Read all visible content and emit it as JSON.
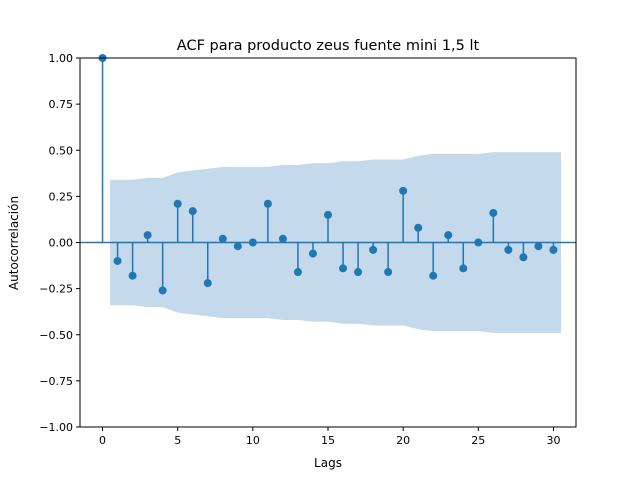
{
  "chart_data": {
    "type": "stem",
    "title": "ACF para producto zeus fuente mini 1,5 lt",
    "xlabel": "Lags",
    "ylabel": "Autocorrelación",
    "xlim": [
      -1.5,
      31.5
    ],
    "ylim": [
      -1.0,
      1.0
    ],
    "x_ticks": [
      0,
      5,
      10,
      15,
      20,
      25,
      30
    ],
    "x_tick_labels": [
      "0",
      "5",
      "10",
      "15",
      "20",
      "25",
      "30"
    ],
    "y_ticks": [
      -1.0,
      -0.75,
      -0.5,
      -0.25,
      0.0,
      0.25,
      0.5,
      0.75,
      1.0
    ],
    "y_tick_labels": [
      "−1.00",
      "−0.75",
      "−0.50",
      "−0.25",
      "0.00",
      "0.25",
      "0.50",
      "0.75",
      "1.00"
    ],
    "lags": [
      0,
      1,
      2,
      3,
      4,
      5,
      6,
      7,
      8,
      9,
      10,
      11,
      12,
      13,
      14,
      15,
      16,
      17,
      18,
      19,
      20,
      21,
      22,
      23,
      24,
      25,
      26,
      27,
      28,
      29,
      30
    ],
    "acf": [
      1.0,
      -0.1,
      -0.18,
      0.04,
      -0.26,
      0.21,
      0.17,
      -0.22,
      0.02,
      -0.02,
      0.0,
      0.21,
      0.02,
      -0.16,
      -0.06,
      0.15,
      -0.14,
      -0.16,
      -0.04,
      -0.16,
      0.28,
      0.08,
      -0.18,
      0.04,
      -0.14,
      0.0,
      0.16,
      -0.04,
      -0.08,
      -0.02,
      -0.04
    ],
    "confint_upper": [
      null,
      0.34,
      0.34,
      0.35,
      0.35,
      0.38,
      0.39,
      0.4,
      0.41,
      0.41,
      0.41,
      0.41,
      0.42,
      0.42,
      0.43,
      0.43,
      0.44,
      0.44,
      0.45,
      0.45,
      0.45,
      0.47,
      0.48,
      0.48,
      0.48,
      0.48,
      0.49,
      0.49,
      0.49,
      0.49,
      0.49
    ],
    "grid": false,
    "colors": {
      "stem": "#1f77b4",
      "band": "#c4d9ec",
      "zero_line": "#1f77b4"
    }
  }
}
